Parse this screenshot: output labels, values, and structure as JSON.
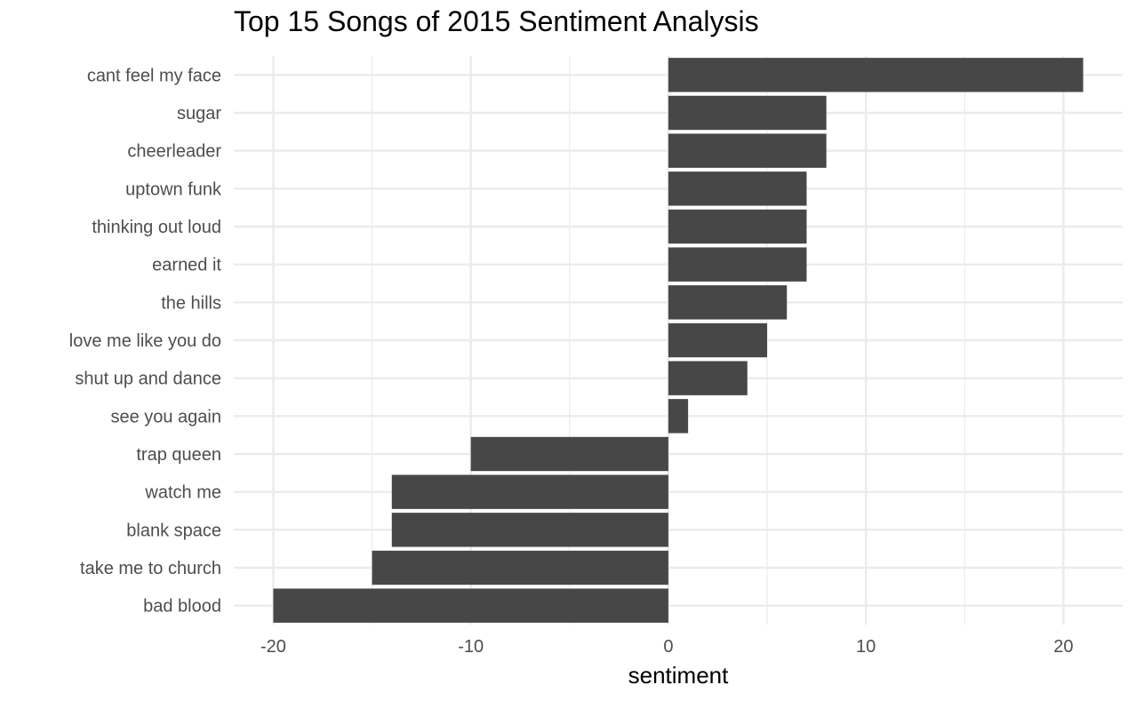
{
  "chart_data": {
    "type": "bar",
    "orientation": "horizontal",
    "title": "Top 15 Songs of 2015 Sentiment Analysis",
    "xlabel": "sentiment",
    "ylabel": "",
    "categories": [
      "cant feel my face",
      "sugar",
      "cheerleader",
      "uptown funk",
      "thinking out loud",
      "earned it",
      "the hills",
      "love me like you do",
      "shut up and dance",
      "see you again",
      "trap queen",
      "watch me",
      "blank space",
      "take me to church",
      "bad blood"
    ],
    "values": [
      21,
      8,
      8,
      7,
      7,
      7,
      6,
      5,
      4,
      1,
      -10,
      -14,
      -14,
      -15,
      -20
    ],
    "xlim": [
      -22,
      23
    ],
    "xticks": [
      -20,
      -10,
      0,
      10,
      20
    ],
    "xtick_labels": [
      "-20",
      "-10",
      "0",
      "10",
      "20"
    ],
    "grid": true,
    "legend": "none",
    "bar_color": "#474747",
    "grid_color": "#ebebeb"
  }
}
